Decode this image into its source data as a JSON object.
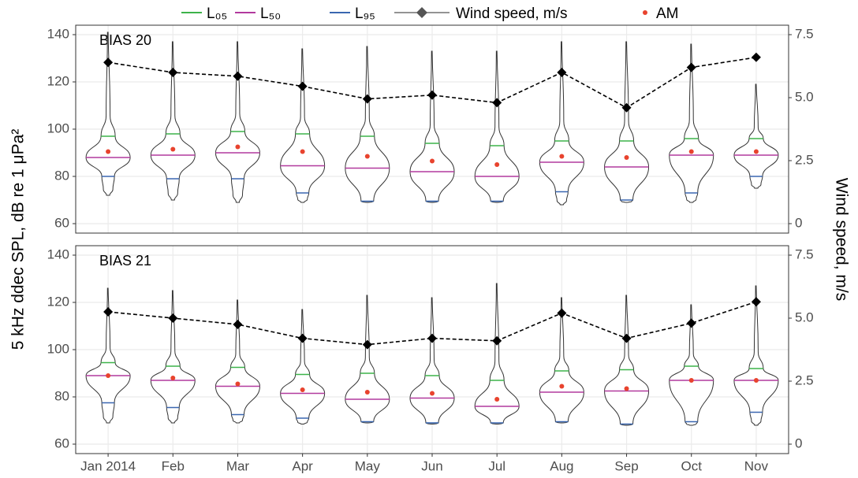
{
  "chart_data": [
    {
      "type": "violin",
      "title": "BIAS 20",
      "ylabel": "5 kHz ddec SPL, dB re 1 μPa²",
      "y2label": "Wind speed, m/s",
      "series": [
        {
          "name": "L₀₅",
          "color": "#3db34a",
          "values": [
            97,
            98,
            99,
            98,
            97,
            94,
            93,
            95,
            95,
            96,
            96
          ]
        },
        {
          "name": "L₅₀",
          "color": "#b23a9e",
          "values": [
            88,
            89,
            90,
            84.5,
            83.5,
            82,
            80,
            86,
            84,
            89,
            89
          ]
        },
        {
          "name": "L₉₅",
          "color": "#3a67b0",
          "values": [
            80,
            79,
            79,
            73,
            69.5,
            69.5,
            69.5,
            73.5,
            70,
            73,
            80
          ]
        },
        {
          "name": "Wind speed, m/s",
          "color": "#000000",
          "axis": "y2",
          "values": [
            6.4,
            6.0,
            5.85,
            5.45,
            4.95,
            5.1,
            4.8,
            6.0,
            4.6,
            6.2,
            6.6
          ]
        },
        {
          "name": "AM",
          "color": "#e8432e",
          "values": [
            90.5,
            91.5,
            92.5,
            90.5,
            88.5,
            86.5,
            85,
            88.5,
            88,
            90.5,
            90.5
          ]
        }
      ],
      "max": [
        141,
        137,
        137,
        134,
        135,
        133,
        133,
        137,
        137,
        136,
        119
      ],
      "min": [
        72,
        70,
        69,
        69,
        69,
        69,
        69,
        68,
        69,
        69,
        75
      ],
      "ylim": [
        56,
        144
      ],
      "yticks": [
        60,
        80,
        100,
        120,
        140
      ],
      "y2lim": [
        -0.375,
        7.875
      ],
      "y2ticks": [
        0,
        2.5,
        {
          "value": 5,
          "label": "5.0"
        },
        7.5
      ]
    },
    {
      "type": "violin",
      "title": "BIAS 21",
      "categories": [
        "Jan 2014",
        "Feb",
        "Mar",
        "Apr",
        "May",
        "Jun",
        "Jul",
        "Aug",
        "Sep",
        "Oct",
        "Nov"
      ],
      "series": [
        {
          "color": "#3db34a",
          "values": [
            94.5,
            93,
            92.5,
            89.5,
            90,
            89,
            87,
            91,
            91.5,
            93,
            92
          ]
        },
        {
          "color": "#b23a9e",
          "values": [
            89,
            87,
            84.5,
            81.5,
            79,
            79.5,
            76,
            82,
            82.5,
            87,
            87
          ]
        },
        {
          "color": "#3a67b0",
          "values": [
            77.5,
            75.5,
            72.5,
            71,
            69.5,
            69,
            69,
            69.5,
            68.5,
            69.5,
            73.5
          ]
        },
        {
          "color": "#000000",
          "axis": "y2",
          "values": [
            5.25,
            5.0,
            4.75,
            4.2,
            3.95,
            4.2,
            4.1,
            5.2,
            4.2,
            4.8,
            5.65
          ]
        },
        {
          "color": "#e8432e",
          "values": [
            89,
            88,
            85.5,
            83,
            82,
            81.5,
            79,
            84.5,
            83.5,
            87,
            87
          ]
        }
      ],
      "max": [
        126,
        125,
        121,
        117,
        123,
        122,
        128,
        122,
        123,
        119,
        127
      ],
      "min": [
        69,
        69,
        69,
        68.5,
        69,
        68.5,
        68.5,
        69,
        68,
        68,
        68
      ],
      "ylim": [
        56,
        144
      ],
      "yticks": [
        60,
        80,
        100,
        120,
        140
      ],
      "y2lim": [
        -0.375,
        7.875
      ],
      "y2ticks": [
        0,
        2.5,
        {
          "value": 5,
          "label": "5.0"
        },
        7.5
      ]
    }
  ]
}
